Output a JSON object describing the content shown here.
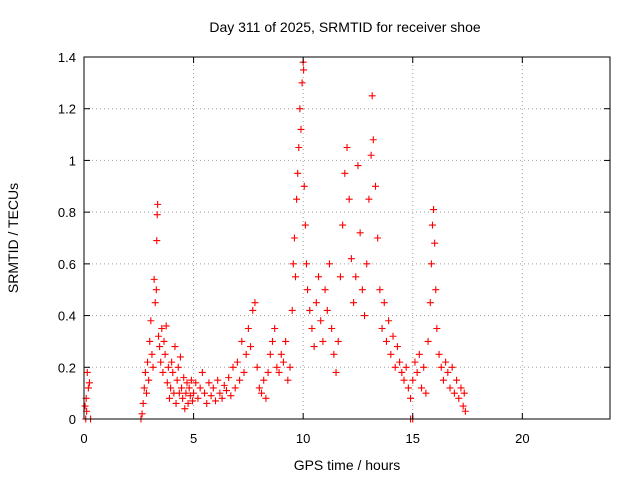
{
  "chart_data": {
    "type": "scatter",
    "title": "Day 311 of 2025, SRMTID for receiver shoe",
    "xlabel": "GPS time / hours",
    "ylabel": "SRMTID / TECUs",
    "xlim": [
      0,
      24
    ],
    "ylim": [
      0,
      1.4
    ],
    "xticks": [
      0,
      5,
      10,
      15,
      20
    ],
    "yticks": [
      0,
      0.2,
      0.4,
      0.6,
      0.8,
      1,
      1.2,
      1.4
    ],
    "xtick_labels": [
      "0",
      "5",
      "10",
      "15",
      "20"
    ],
    "ytick_labels": [
      "0",
      "0.2",
      "0.4",
      "0.6",
      "0.8",
      "1",
      "1.2",
      "1.4"
    ],
    "grid": true,
    "marker": "+",
    "color": "#ff0000",
    "series": [
      {
        "name": "SRMTID",
        "points": [
          [
            0.05,
            0.05
          ],
          [
            0.1,
            0.08
          ],
          [
            0.12,
            0.03
          ],
          [
            0.15,
            0.18
          ],
          [
            0.2,
            0.12
          ],
          [
            0.25,
            0.14
          ],
          [
            0.08,
            0.0
          ],
          [
            0.3,
            0.0
          ],
          [
            2.6,
            0.0
          ],
          [
            2.65,
            0.02
          ],
          [
            2.7,
            0.06
          ],
          [
            2.75,
            0.12
          ],
          [
            2.8,
            0.18
          ],
          [
            2.85,
            0.1
          ],
          [
            2.9,
            0.22
          ],
          [
            2.95,
            0.15
          ],
          [
            3.0,
            0.3
          ],
          [
            3.05,
            0.38
          ],
          [
            3.1,
            0.25
          ],
          [
            3.15,
            0.2
          ],
          [
            3.2,
            0.54
          ],
          [
            3.25,
            0.45
          ],
          [
            3.3,
            0.5
          ],
          [
            3.32,
            0.69
          ],
          [
            3.34,
            0.79
          ],
          [
            3.36,
            0.83
          ],
          [
            3.4,
            0.32
          ],
          [
            3.45,
            0.28
          ],
          [
            3.5,
            0.22
          ],
          [
            3.55,
            0.35
          ],
          [
            3.6,
            0.18
          ],
          [
            3.65,
            0.3
          ],
          [
            3.7,
            0.25
          ],
          [
            3.75,
            0.36
          ],
          [
            3.8,
            0.14
          ],
          [
            3.85,
            0.2
          ],
          [
            3.9,
            0.08
          ],
          [
            3.95,
            0.12
          ],
          [
            4.0,
            0.22
          ],
          [
            4.05,
            0.18
          ],
          [
            4.1,
            0.1
          ],
          [
            4.15,
            0.28
          ],
          [
            4.2,
            0.06
          ],
          [
            4.25,
            0.15
          ],
          [
            4.3,
            0.2
          ],
          [
            4.35,
            0.1
          ],
          [
            4.4,
            0.24
          ],
          [
            4.45,
            0.12
          ],
          [
            4.5,
            0.08
          ],
          [
            4.55,
            0.16
          ],
          [
            4.6,
            0.04
          ],
          [
            4.65,
            0.1
          ],
          [
            4.7,
            0.14
          ],
          [
            4.75,
            0.06
          ],
          [
            4.8,
            0.12
          ],
          [
            4.85,
            0.09
          ],
          [
            4.9,
            0.15
          ],
          [
            4.95,
            0.07
          ],
          [
            5.0,
            0.1
          ],
          [
            5.1,
            0.14
          ],
          [
            5.2,
            0.08
          ],
          [
            5.3,
            0.12
          ],
          [
            5.4,
            0.18
          ],
          [
            5.5,
            0.1
          ],
          [
            5.6,
            0.06
          ],
          [
            5.7,
            0.14
          ],
          [
            5.8,
            0.09
          ],
          [
            5.9,
            0.12
          ],
          [
            6.0,
            0.07
          ],
          [
            6.1,
            0.15
          ],
          [
            6.2,
            0.1
          ],
          [
            6.3,
            0.08
          ],
          [
            6.4,
            0.13
          ],
          [
            6.5,
            0.11
          ],
          [
            6.6,
            0.16
          ],
          [
            6.7,
            0.09
          ],
          [
            6.8,
            0.2
          ],
          [
            6.9,
            0.12
          ],
          [
            7.0,
            0.22
          ],
          [
            7.1,
            0.15
          ],
          [
            7.2,
            0.3
          ],
          [
            7.3,
            0.18
          ],
          [
            7.4,
            0.25
          ],
          [
            7.5,
            0.35
          ],
          [
            7.6,
            0.28
          ],
          [
            7.7,
            0.42
          ],
          [
            7.8,
            0.45
          ],
          [
            7.9,
            0.2
          ],
          [
            8.0,
            0.12
          ],
          [
            8.1,
            0.1
          ],
          [
            8.2,
            0.15
          ],
          [
            8.3,
            0.08
          ],
          [
            8.4,
            0.18
          ],
          [
            8.5,
            0.25
          ],
          [
            8.6,
            0.3
          ],
          [
            8.7,
            0.35
          ],
          [
            8.8,
            0.2
          ],
          [
            8.9,
            0.18
          ],
          [
            9.0,
            0.25
          ],
          [
            9.1,
            0.22
          ],
          [
            9.2,
            0.3
          ],
          [
            9.3,
            0.15
          ],
          [
            9.4,
            0.2
          ],
          [
            9.5,
            0.42
          ],
          [
            9.55,
            0.6
          ],
          [
            9.6,
            0.7
          ],
          [
            9.65,
            0.55
          ],
          [
            9.7,
            0.85
          ],
          [
            9.75,
            0.95
          ],
          [
            9.8,
            1.05
          ],
          [
            9.85,
            1.2
          ],
          [
            9.9,
            1.12
          ],
          [
            9.95,
            1.3
          ],
          [
            10.0,
            1.38
          ],
          [
            10.02,
            1.35
          ],
          [
            10.05,
            0.9
          ],
          [
            10.1,
            0.75
          ],
          [
            10.15,
            0.6
          ],
          [
            10.2,
            0.5
          ],
          [
            10.3,
            0.42
          ],
          [
            10.4,
            0.35
          ],
          [
            10.5,
            0.28
          ],
          [
            10.6,
            0.45
          ],
          [
            10.7,
            0.55
          ],
          [
            10.8,
            0.38
          ],
          [
            10.9,
            0.3
          ],
          [
            11.0,
            0.5
          ],
          [
            11.1,
            0.42
          ],
          [
            11.2,
            0.6
          ],
          [
            11.3,
            0.35
          ],
          [
            11.4,
            0.25
          ],
          [
            11.5,
            0.18
          ],
          [
            11.6,
            0.3
          ],
          [
            11.7,
            0.55
          ],
          [
            11.8,
            0.75
          ],
          [
            11.9,
            0.95
          ],
          [
            12.0,
            1.05
          ],
          [
            12.1,
            0.85
          ],
          [
            12.2,
            0.62
          ],
          [
            12.3,
            0.45
          ],
          [
            12.4,
            0.55
          ],
          [
            12.5,
            0.98
          ],
          [
            12.6,
            0.72
          ],
          [
            12.7,
            0.5
          ],
          [
            12.8,
            0.4
          ],
          [
            12.9,
            0.6
          ],
          [
            13.0,
            0.85
          ],
          [
            13.1,
            1.02
          ],
          [
            13.15,
            1.25
          ],
          [
            13.2,
            1.08
          ],
          [
            13.3,
            0.9
          ],
          [
            13.4,
            0.7
          ],
          [
            13.5,
            0.5
          ],
          [
            13.6,
            0.35
          ],
          [
            13.7,
            0.45
          ],
          [
            13.8,
            0.3
          ],
          [
            13.9,
            0.38
          ],
          [
            14.0,
            0.25
          ],
          [
            14.1,
            0.32
          ],
          [
            14.2,
            0.2
          ],
          [
            14.3,
            0.28
          ],
          [
            14.4,
            0.22
          ],
          [
            14.5,
            0.18
          ],
          [
            14.6,
            0.15
          ],
          [
            14.7,
            0.2
          ],
          [
            14.8,
            0.12
          ],
          [
            14.9,
            0.08
          ],
          [
            15.0,
            0.15
          ],
          [
            15.1,
            0.22
          ],
          [
            15.2,
            0.18
          ],
          [
            15.3,
            0.25
          ],
          [
            15.4,
            0.12
          ],
          [
            15.5,
            0.2
          ],
          [
            15.6,
            0.1
          ],
          [
            15.7,
            0.3
          ],
          [
            15.8,
            0.45
          ],
          [
            15.85,
            0.6
          ],
          [
            15.9,
            0.75
          ],
          [
            15.95,
            0.81
          ],
          [
            16.0,
            0.68
          ],
          [
            16.05,
            0.5
          ],
          [
            16.1,
            0.35
          ],
          [
            16.2,
            0.25
          ],
          [
            16.3,
            0.2
          ],
          [
            16.4,
            0.15
          ],
          [
            16.5,
            0.22
          ],
          [
            16.6,
            0.18
          ],
          [
            16.7,
            0.12
          ],
          [
            16.8,
            0.2
          ],
          [
            16.9,
            0.1
          ],
          [
            17.0,
            0.15
          ],
          [
            17.1,
            0.08
          ],
          [
            17.2,
            0.12
          ],
          [
            17.3,
            0.05
          ],
          [
            17.35,
            0.1
          ],
          [
            17.4,
            0.03
          ],
          [
            15.0,
            0.0
          ],
          [
            14.9,
            0.0
          ]
        ]
      }
    ]
  }
}
